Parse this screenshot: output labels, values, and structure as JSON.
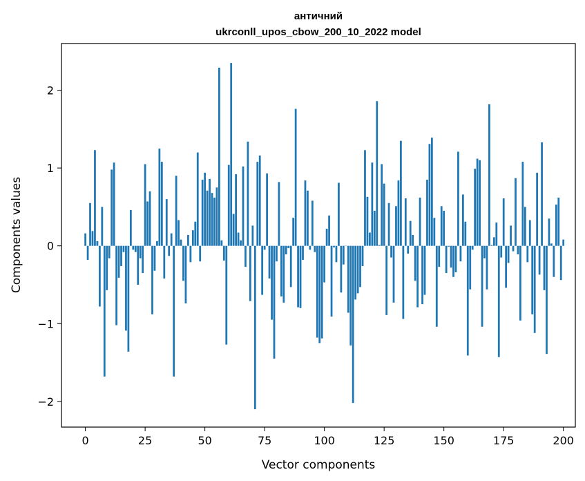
{
  "chart_data": {
    "type": "bar",
    "title": "античний",
    "subtitle": "ukrconll_upos_cbow_200_10_2022 model",
    "xlabel": "Vector components",
    "ylabel": "Components values",
    "xlim": [
      -10,
      205
    ],
    "ylim": [
      -2.33,
      2.6
    ],
    "xticks": [
      0,
      25,
      50,
      75,
      100,
      125,
      150,
      175,
      200
    ],
    "yticks": [
      -2,
      -1,
      0,
      1,
      2
    ],
    "ytick_labels": [
      "−2",
      "−1",
      "0",
      "1",
      "2"
    ],
    "grid": false,
    "legend": "none",
    "bar_color": "#1f77b4",
    "values": [
      0.16,
      -0.18,
      0.55,
      0.19,
      1.23,
      0.06,
      -0.78,
      0.5,
      -1.68,
      -0.57,
      -0.16,
      0.98,
      1.07,
      -1.02,
      -0.41,
      -0.26,
      -0.08,
      -1.09,
      -1.36,
      0.46,
      -0.05,
      -0.08,
      -0.5,
      -0.16,
      -0.35,
      1.05,
      0.57,
      0.7,
      -0.88,
      -0.32,
      0.06,
      1.25,
      1.08,
      -0.42,
      0.6,
      -0.13,
      0.16,
      -1.68,
      0.9,
      0.33,
      0.08,
      -0.45,
      -0.74,
      0.14,
      -0.21,
      0.2,
      0.31,
      1.2,
      -0.2,
      0.85,
      0.94,
      0.71,
      0.86,
      0.68,
      0.62,
      0.75,
      2.29,
      0.07,
      -0.19,
      -1.27,
      1.04,
      2.35,
      0.41,
      0.92,
      0.17,
      0.07,
      1.02,
      -0.27,
      1.34,
      -0.71,
      0.26,
      -2.1,
      1.08,
      1.16,
      -0.63,
      -0.05,
      0.93,
      -0.42,
      -0.95,
      -1.45,
      -0.2,
      0.82,
      -0.65,
      -0.73,
      -0.11,
      -0.03,
      -0.53,
      0.36,
      1.76,
      -0.79,
      -0.8,
      -0.18,
      0.84,
      0.71,
      -0.05,
      0.58,
      -0.08,
      -1.18,
      -1.25,
      -1.19,
      -0.47,
      0.22,
      0.39,
      -0.91,
      -0.02,
      -0.21,
      0.81,
      -0.6,
      -0.24,
      0.0,
      -0.86,
      -1.28,
      -2.02,
      -0.69,
      -0.61,
      -0.53,
      -0.26,
      1.23,
      0.63,
      0.17,
      1.07,
      0.45,
      1.86,
      0.01,
      1.05,
      0.8,
      -0.89,
      0.55,
      -0.15,
      -0.73,
      0.51,
      0.84,
      1.35,
      -0.94,
      0.61,
      -0.1,
      0.32,
      0.14,
      -0.45,
      -0.79,
      0.62,
      -0.75,
      -0.63,
      0.85,
      1.31,
      1.39,
      0.36,
      -1.04,
      -0.27,
      0.51,
      0.45,
      -0.35,
      -0.01,
      -0.28,
      -0.4,
      -0.34,
      1.21,
      -0.2,
      0.66,
      0.31,
      -1.41,
      -0.56,
      -0.05,
      0.99,
      1.12,
      1.1,
      -1.04,
      -0.16,
      -0.56,
      1.82,
      0.01,
      0.11,
      0.3,
      -1.43,
      -0.15,
      0.61,
      -0.54,
      -0.22,
      0.26,
      -0.07,
      0.87,
      -0.11,
      -0.96,
      1.08,
      0.5,
      -0.21,
      0.33,
      -0.88,
      -1.12,
      0.94,
      -0.37,
      1.33,
      -0.57,
      -1.39,
      0.35,
      0.03,
      -0.4,
      0.53,
      0.62,
      -0.44,
      0.08
    ]
  }
}
